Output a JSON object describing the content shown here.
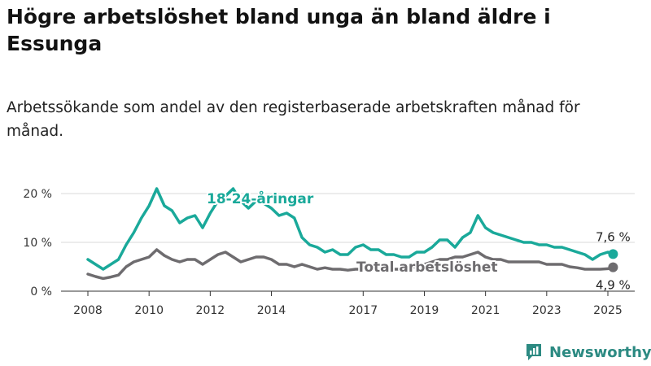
{
  "title": "Högre arbetslöshet bland unga än bland äldre i Essunga",
  "subtitle": "Arbetssökande som andel av den registerbaserade arbetskraften månad för månad.",
  "brand": "Newsworthy",
  "icons": {
    "brand": "newsworthy-logo-icon"
  },
  "colors": {
    "youth": "#1aa99a",
    "total": "#6e6c6f",
    "grid": "#d9d9d9"
  },
  "chart_data": {
    "type": "line",
    "title": "Högre arbetslöshet bland unga än bland äldre i Essunga",
    "xlabel": "",
    "ylabel": "",
    "xlim": [
      2008,
      2025.5
    ],
    "ylim": [
      0,
      20
    ],
    "grid": true,
    "y_ticks": [
      {
        "value": 0,
        "label": "0 %"
      },
      {
        "value": 10,
        "label": "10 %"
      },
      {
        "value": 20,
        "label": "20 %"
      }
    ],
    "x_ticks": [
      {
        "value": 2008,
        "label": "2008"
      },
      {
        "value": 2010,
        "label": "2010"
      },
      {
        "value": 2012,
        "label": "2012"
      },
      {
        "value": 2014,
        "label": "2014"
      },
      {
        "value": 2017,
        "label": "2017"
      },
      {
        "value": 2019,
        "label": "2019"
      },
      {
        "value": 2021,
        "label": "2021"
      },
      {
        "value": 2023,
        "label": "2023"
      },
      {
        "value": 2025,
        "label": "2025"
      }
    ],
    "series": [
      {
        "name": "18-24-åringar",
        "color": "#1aa99a",
        "x": [
          2008.0,
          2008.25,
          2008.5,
          2008.75,
          2009.0,
          2009.25,
          2009.5,
          2009.75,
          2010.0,
          2010.25,
          2010.5,
          2010.75,
          2011.0,
          2011.25,
          2011.5,
          2011.75,
          2012.0,
          2012.25,
          2012.5,
          2012.75,
          2013.0,
          2013.25,
          2013.5,
          2013.75,
          2014.0,
          2014.25,
          2014.5,
          2014.75,
          2015.0,
          2015.25,
          2015.5,
          2015.75,
          2016.0,
          2016.25,
          2016.5,
          2016.75,
          2017.0,
          2017.25,
          2017.5,
          2017.75,
          2018.0,
          2018.25,
          2018.5,
          2018.75,
          2019.0,
          2019.25,
          2019.5,
          2019.75,
          2020.0,
          2020.25,
          2020.5,
          2020.75,
          2021.0,
          2021.25,
          2021.5,
          2021.75,
          2022.0,
          2022.25,
          2022.5,
          2022.75,
          2023.0,
          2023.25,
          2023.5,
          2023.75,
          2024.0,
          2024.25,
          2024.5,
          2024.75,
          2025.0,
          2025.17
        ],
        "y": [
          6.5,
          5.5,
          4.5,
          5.5,
          6.5,
          9.5,
          12.0,
          15.0,
          17.5,
          21.0,
          17.5,
          16.5,
          14.0,
          15.0,
          15.5,
          13.0,
          16.0,
          18.5,
          19.5,
          21.0,
          18.5,
          17.0,
          18.5,
          18.0,
          17.0,
          15.5,
          16.0,
          15.0,
          11.0,
          9.5,
          9.0,
          8.0,
          8.5,
          7.5,
          7.5,
          9.0,
          9.5,
          8.5,
          8.5,
          7.5,
          7.5,
          7.0,
          7.0,
          8.0,
          8.0,
          9.0,
          10.5,
          10.5,
          9.0,
          11.0,
          12.0,
          15.5,
          13.0,
          12.0,
          11.5,
          11.0,
          10.5,
          10.0,
          10.0,
          9.5,
          9.5,
          9.0,
          9.0,
          8.5,
          8.0,
          7.5,
          6.5,
          7.5,
          8.0,
          7.6
        ]
      },
      {
        "name": "Total arbetslöshet",
        "color": "#6e6c6f",
        "x": [
          2008.0,
          2008.25,
          2008.5,
          2008.75,
          2009.0,
          2009.25,
          2009.5,
          2009.75,
          2010.0,
          2010.25,
          2010.5,
          2010.75,
          2011.0,
          2011.25,
          2011.5,
          2011.75,
          2012.0,
          2012.25,
          2012.5,
          2012.75,
          2013.0,
          2013.25,
          2013.5,
          2013.75,
          2014.0,
          2014.25,
          2014.5,
          2014.75,
          2015.0,
          2015.25,
          2015.5,
          2015.75,
          2016.0,
          2016.25,
          2016.5,
          2016.75,
          2017.0,
          2017.25,
          2017.5,
          2017.75,
          2018.0,
          2018.25,
          2018.5,
          2018.75,
          2019.0,
          2019.25,
          2019.5,
          2019.75,
          2020.0,
          2020.25,
          2020.5,
          2020.75,
          2021.0,
          2021.25,
          2021.5,
          2021.75,
          2022.0,
          2022.25,
          2022.5,
          2022.75,
          2023.0,
          2023.25,
          2023.5,
          2023.75,
          2024.0,
          2024.25,
          2024.5,
          2024.75,
          2025.0,
          2025.17
        ],
        "y": [
          3.5,
          3.0,
          2.6,
          2.9,
          3.3,
          5.0,
          6.0,
          6.5,
          7.0,
          8.5,
          7.3,
          6.5,
          6.0,
          6.5,
          6.5,
          5.5,
          6.5,
          7.5,
          8.0,
          7.0,
          6.0,
          6.5,
          7.0,
          7.0,
          6.5,
          5.5,
          5.5,
          5.0,
          5.5,
          5.0,
          4.5,
          4.8,
          4.5,
          4.5,
          4.3,
          4.5,
          4.5,
          4.5,
          4.5,
          4.5,
          4.5,
          4.5,
          5.0,
          5.0,
          5.5,
          6.0,
          6.5,
          6.5,
          7.0,
          7.0,
          7.5,
          8.0,
          7.0,
          6.5,
          6.5,
          6.0,
          6.0,
          6.0,
          6.0,
          6.0,
          5.5,
          5.5,
          5.5,
          5.0,
          4.8,
          4.5,
          4.5,
          4.5,
          4.6,
          4.9
        ]
      }
    ],
    "end_labels": {
      "youth": "7,6 %",
      "total": "4,9 %"
    },
    "series_labels": {
      "youth": "18-24-åringar",
      "total": "Total arbetslöshet"
    }
  }
}
